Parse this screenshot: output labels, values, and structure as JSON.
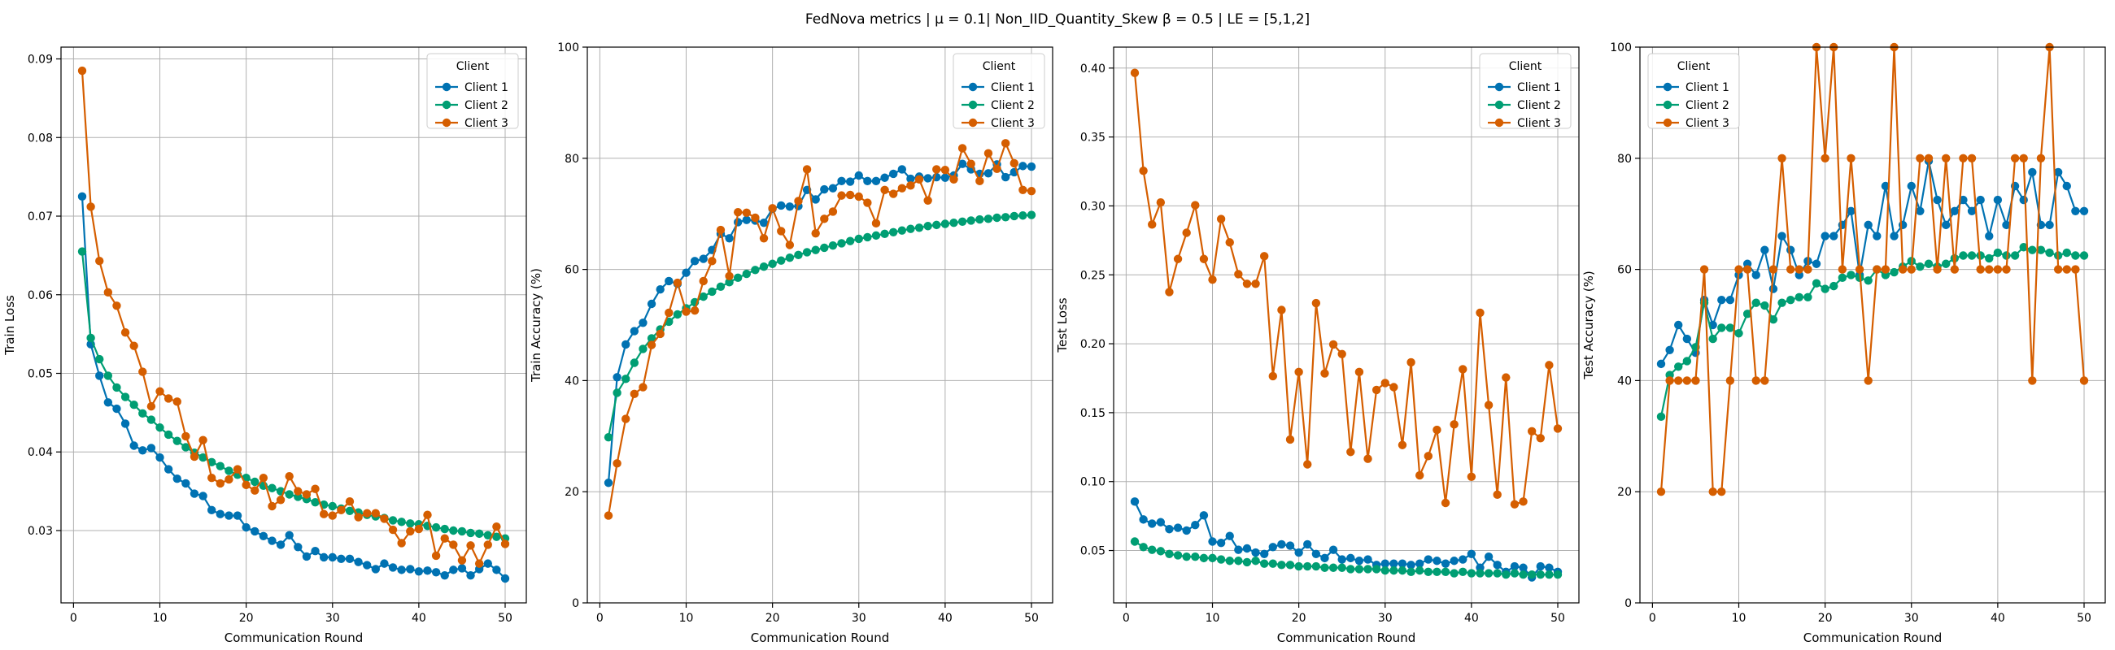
{
  "title": "FedNova metrics | $\\mu = 0.1$| Non_IID_Quantity_Skew $\\beta = 0.5$ | LE = [5,1,2]",
  "title_display": "FedNova metrics | μ = 0.1| Non_IID_Quantity_Skew β = 0.5 | LE = [5,1,2]",
  "colors": {
    "Client 1": "#0072b2",
    "Client 2": "#009e73",
    "Client 3": "#d55e00"
  },
  "chart_data": [
    {
      "type": "line",
      "xlabel": "Communication Round",
      "ylabel": "Train Loss",
      "xlim": [
        -1.45,
        52.45
      ],
      "ylim": [
        0.0208,
        0.0915
      ],
      "xticks": [
        0,
        10,
        20,
        30,
        40,
        50
      ],
      "yticks": [
        0.03,
        0.04,
        0.05,
        0.06,
        0.07,
        0.08,
        0.09
      ],
      "grid": true,
      "legend": {
        "title": "Client",
        "position": "top-right",
        "entries": [
          "Client 1",
          "Client 2",
          "Client 3"
        ]
      },
      "x": [
        1,
        2,
        3,
        4,
        5,
        6,
        7,
        8,
        9,
        10,
        11,
        12,
        13,
        14,
        15,
        16,
        17,
        18,
        19,
        20,
        21,
        22,
        23,
        24,
        25,
        26,
        27,
        28,
        29,
        30,
        31,
        32,
        33,
        34,
        35,
        36,
        37,
        38,
        39,
        40,
        41,
        42,
        43,
        44,
        45,
        46,
        47,
        48,
        49,
        50
      ],
      "series": [
        {
          "name": "Client 1",
          "values": [
            0.0725,
            0.0537,
            0.0497,
            0.0463,
            0.0455,
            0.0436,
            0.0408,
            0.0402,
            0.0405,
            0.0393,
            0.0378,
            0.0366,
            0.036,
            0.0347,
            0.0344,
            0.0326,
            0.0321,
            0.0319,
            0.0319,
            0.0304,
            0.0299,
            0.0293,
            0.0287,
            0.0282,
            0.0294,
            0.0279,
            0.0267,
            0.0274,
            0.0266,
            0.0266,
            0.0264,
            0.0264,
            0.026,
            0.0256,
            0.0251,
            0.0258,
            0.0253,
            0.025,
            0.0251,
            0.0248,
            0.0249,
            0.0247,
            0.0243,
            0.025,
            0.0252,
            0.0243,
            0.0251,
            0.0258,
            0.025,
            0.0239
          ]
        },
        {
          "name": "Client 2",
          "values": [
            0.0655,
            0.0545,
            0.0518,
            0.0497,
            0.0482,
            0.047,
            0.046,
            0.0449,
            0.0441,
            0.0431,
            0.0422,
            0.0414,
            0.0406,
            0.0399,
            0.0393,
            0.0387,
            0.0382,
            0.0376,
            0.0371,
            0.0367,
            0.0362,
            0.0357,
            0.0354,
            0.035,
            0.0346,
            0.0343,
            0.034,
            0.0336,
            0.0333,
            0.0331,
            0.0328,
            0.0325,
            0.0323,
            0.032,
            0.0318,
            0.0316,
            0.0313,
            0.0311,
            0.0309,
            0.0308,
            0.0306,
            0.0304,
            0.0302,
            0.03,
            0.0299,
            0.0297,
            0.0296,
            0.0294,
            0.0292,
            0.029
          ]
        },
        {
          "name": "Client 3",
          "values": [
            0.0885,
            0.0712,
            0.0643,
            0.0603,
            0.0586,
            0.0552,
            0.0535,
            0.0502,
            0.0458,
            0.0477,
            0.0468,
            0.0464,
            0.042,
            0.0394,
            0.0415,
            0.0367,
            0.036,
            0.0365,
            0.0378,
            0.0358,
            0.0351,
            0.0367,
            0.0331,
            0.0339,
            0.0369,
            0.035,
            0.0346,
            0.0353,
            0.0321,
            0.0319,
            0.0326,
            0.0337,
            0.0317,
            0.0322,
            0.0322,
            0.0315,
            0.0301,
            0.0284,
            0.0299,
            0.0302,
            0.032,
            0.0268,
            0.029,
            0.0282,
            0.0262,
            0.0281,
            0.0258,
            0.0282,
            0.0305,
            0.0283
          ]
        }
      ]
    },
    {
      "type": "line",
      "xlabel": "Communication Round",
      "ylabel": "Train Accuracy (%)",
      "xlim": [
        -1.45,
        52.45
      ],
      "ylim": [
        0,
        100
      ],
      "xticks": [
        0,
        10,
        20,
        30,
        40,
        50
      ],
      "yticks": [
        0,
        20,
        40,
        60,
        80,
        100
      ],
      "grid": true,
      "legend": {
        "title": "Client",
        "position": "top-right",
        "entries": [
          "Client 1",
          "Client 2",
          "Client 3"
        ]
      },
      "x": [
        1,
        2,
        3,
        4,
        5,
        6,
        7,
        8,
        9,
        10,
        11,
        12,
        13,
        14,
        15,
        16,
        17,
        18,
        19,
        20,
        21,
        22,
        23,
        24,
        25,
        26,
        27,
        28,
        29,
        30,
        31,
        32,
        33,
        34,
        35,
        36,
        37,
        38,
        39,
        40,
        41,
        42,
        43,
        44,
        45,
        46,
        47,
        48,
        49,
        50
      ],
      "series": [
        {
          "name": "Client 1",
          "values": [
            21.6,
            40.6,
            46.5,
            48.9,
            50.4,
            53.8,
            56.4,
            57.9,
            57.4,
            59.4,
            61.5,
            61.9,
            63.5,
            66.4,
            65.6,
            68.5,
            68.9,
            68.8,
            68.4,
            70.9,
            71.5,
            71.3,
            71.4,
            74.3,
            72.6,
            74.4,
            74.6,
            75.9,
            75.8,
            76.9,
            75.9,
            75.9,
            76.5,
            77.2,
            78.0,
            76.3,
            76.7,
            76.4,
            76.6,
            76.5,
            76.9,
            79.0,
            78.0,
            77.2,
            77.3,
            78.9,
            76.6,
            77.5,
            78.6,
            78.5
          ]
        },
        {
          "name": "Client 2",
          "values": [
            29.8,
            37.8,
            40.3,
            43.2,
            45.7,
            47.6,
            49.2,
            50.6,
            51.9,
            53.0,
            54.1,
            55.1,
            56.0,
            56.9,
            57.7,
            58.5,
            59.2,
            59.9,
            60.5,
            61.0,
            61.6,
            62.1,
            62.6,
            63.1,
            63.5,
            63.9,
            64.3,
            64.7,
            65.1,
            65.5,
            65.8,
            66.1,
            66.4,
            66.7,
            67.0,
            67.3,
            67.5,
            67.8,
            68.0,
            68.2,
            68.4,
            68.6,
            68.8,
            69.0,
            69.1,
            69.3,
            69.4,
            69.6,
            69.7,
            69.8
          ]
        },
        {
          "name": "Client 3",
          "values": [
            15.7,
            25.1,
            33.1,
            37.6,
            38.8,
            46.4,
            48.4,
            52.2,
            57.6,
            52.4,
            52.6,
            57.9,
            61.5,
            67.1,
            58.8,
            70.3,
            70.2,
            69.3,
            65.6,
            71.0,
            66.9,
            64.4,
            72.3,
            78.0,
            66.5,
            69.1,
            70.4,
            73.3,
            73.4,
            73.1,
            72.0,
            68.3,
            74.3,
            73.6,
            74.6,
            75.1,
            76.2,
            72.4,
            78.0,
            77.9,
            76.2,
            81.8,
            79.0,
            75.9,
            80.9,
            78.1,
            82.7,
            79.1,
            74.3,
            74.1
          ]
        }
      ]
    },
    {
      "type": "line",
      "xlabel": "Communication Round",
      "ylabel": "Test Loss",
      "xlim": [
        -1.45,
        52.45
      ],
      "ylim": [
        0.012,
        0.4152
      ],
      "xticks": [
        0,
        10,
        20,
        30,
        40,
        50
      ],
      "yticks": [
        0.05,
        0.1,
        0.15,
        0.2,
        0.25,
        0.3,
        0.35,
        0.4
      ],
      "grid": true,
      "legend": {
        "title": "Client",
        "position": "top-right",
        "entries": [
          "Client 1",
          "Client 2",
          "Client 3"
        ]
      },
      "x": [
        1,
        2,
        3,
        4,
        5,
        6,
        7,
        8,
        9,
        10,
        11,
        12,
        13,
        14,
        15,
        16,
        17,
        18,
        19,
        20,
        21,
        22,
        23,
        24,
        25,
        26,
        27,
        28,
        29,
        30,
        31,
        32,
        33,
        34,
        35,
        36,
        37,
        38,
        39,
        40,
        41,
        42,
        43,
        44,
        45,
        46,
        47,
        48,
        49,
        50
      ],
      "series": [
        {
          "name": "Client 1",
          "values": [
            0.0855,
            0.0725,
            0.0695,
            0.0705,
            0.0655,
            0.0665,
            0.0645,
            0.0685,
            0.0755,
            0.0565,
            0.0555,
            0.0605,
            0.0505,
            0.0515,
            0.0485,
            0.0475,
            0.0525,
            0.0545,
            0.0535,
            0.0485,
            0.0545,
            0.0475,
            0.0445,
            0.0505,
            0.0435,
            0.0445,
            0.0425,
            0.0435,
            0.0395,
            0.0405,
            0.0405,
            0.0405,
            0.0395,
            0.0405,
            0.0435,
            0.0425,
            0.0405,
            0.0425,
            0.0435,
            0.0475,
            0.0375,
            0.0455,
            0.0395,
            0.0345,
            0.0385,
            0.0375,
            0.0305,
            0.0385,
            0.0375,
            0.0345
          ]
        },
        {
          "name": "Client 2",
          "values": [
            0.0565,
            0.0525,
            0.0505,
            0.0495,
            0.0475,
            0.0465,
            0.0455,
            0.0455,
            0.0445,
            0.0445,
            0.0435,
            0.0425,
            0.0425,
            0.0415,
            0.0425,
            0.0405,
            0.0405,
            0.0395,
            0.0395,
            0.0385,
            0.0385,
            0.0385,
            0.0375,
            0.0375,
            0.0375,
            0.0365,
            0.0365,
            0.0365,
            0.0365,
            0.0355,
            0.0355,
            0.0355,
            0.0345,
            0.0355,
            0.0345,
            0.0345,
            0.0345,
            0.0335,
            0.0345,
            0.0335,
            0.0335,
            0.0335,
            0.0335,
            0.0325,
            0.0335,
            0.0325,
            0.0325,
            0.0325,
            0.0325,
            0.0325
          ]
        },
        {
          "name": "Client 3",
          "values": [
            0.3965,
            0.3255,
            0.2865,
            0.3025,
            0.2375,
            0.2615,
            0.2805,
            0.3005,
            0.2615,
            0.2465,
            0.2905,
            0.2735,
            0.2505,
            0.2435,
            0.2435,
            0.2635,
            0.1765,
            0.2245,
            0.1305,
            0.1795,
            0.1125,
            0.2295,
            0.1785,
            0.1995,
            0.1925,
            0.1215,
            0.1795,
            0.1165,
            0.1665,
            0.1715,
            0.1685,
            0.1265,
            0.1865,
            0.1045,
            0.1185,
            0.1375,
            0.0845,
            0.1415,
            0.1815,
            0.1035,
            0.2225,
            0.1555,
            0.0905,
            0.1755,
            0.0835,
            0.0855,
            0.1365,
            0.1315,
            0.1845,
            0.1385
          ]
        }
      ]
    },
    {
      "type": "line",
      "xlabel": "Communication Round",
      "ylabel": "Test Accuracy (%)",
      "xlim": [
        -1.45,
        52.45
      ],
      "ylim": [
        0,
        100
      ],
      "xticks": [
        0,
        10,
        20,
        30,
        40,
        50
      ],
      "yticks": [
        0,
        20,
        40,
        60,
        80,
        100
      ],
      "grid": true,
      "legend": {
        "title": "Client",
        "position": "top-left",
        "entries": [
          "Client 1",
          "Client 2",
          "Client 3"
        ]
      },
      "x": [
        1,
        2,
        3,
        4,
        5,
        6,
        7,
        8,
        9,
        10,
        11,
        12,
        13,
        14,
        15,
        16,
        17,
        18,
        19,
        20,
        21,
        22,
        23,
        24,
        25,
        26,
        27,
        28,
        29,
        30,
        31,
        32,
        33,
        34,
        35,
        36,
        37,
        38,
        39,
        40,
        41,
        42,
        43,
        44,
        45,
        46,
        47,
        48,
        49,
        50
      ],
      "series": [
        {
          "name": "Client 1",
          "values": [
            43.0,
            45.5,
            50.0,
            47.5,
            45.0,
            54.5,
            50.0,
            54.5,
            54.5,
            59.0,
            61.0,
            59.0,
            63.5,
            56.5,
            66.0,
            63.5,
            59.0,
            61.5,
            61.0,
            66.0,
            66.0,
            68.0,
            70.5,
            59.0,
            68.0,
            66.0,
            75.0,
            66.0,
            68.0,
            75.0,
            70.5,
            79.5,
            72.5,
            68.0,
            70.5,
            72.5,
            70.5,
            72.5,
            66.0,
            72.5,
            68.0,
            75.0,
            72.5,
            77.5,
            68.0,
            68.0,
            77.5,
            75.0,
            70.5,
            70.5
          ]
        },
        {
          "name": "Client 2",
          "values": [
            33.5,
            41.0,
            42.5,
            43.5,
            46.0,
            54.0,
            47.5,
            49.5,
            49.5,
            48.5,
            52.0,
            54.0,
            53.5,
            51.0,
            54.0,
            54.5,
            55.0,
            55.0,
            57.5,
            56.5,
            57.0,
            58.5,
            59.0,
            58.5,
            58.0,
            60.0,
            59.0,
            59.5,
            60.5,
            61.5,
            60.5,
            61.0,
            60.5,
            61.0,
            62.0,
            62.5,
            62.5,
            62.5,
            62.0,
            63.0,
            62.5,
            62.5,
            64.0,
            63.5,
            63.5,
            63.0,
            62.5,
            63.0,
            62.5,
            62.5
          ]
        },
        {
          "name": "Client 3",
          "values": [
            20.0,
            40.0,
            40.0,
            40.0,
            40.0,
            60.0,
            20.0,
            20.0,
            40.0,
            60.0,
            60.0,
            40.0,
            40.0,
            60.0,
            80.0,
            60.0,
            60.0,
            60.0,
            100.0,
            80.0,
            100.0,
            60.0,
            80.0,
            60.0,
            40.0,
            60.0,
            60.0,
            100.0,
            60.0,
            60.0,
            80.0,
            80.0,
            60.0,
            80.0,
            60.0,
            80.0,
            80.0,
            60.0,
            60.0,
            60.0,
            60.0,
            80.0,
            80.0,
            40.0,
            80.0,
            100.0,
            60.0,
            60.0,
            60.0,
            40.0
          ]
        }
      ]
    }
  ]
}
